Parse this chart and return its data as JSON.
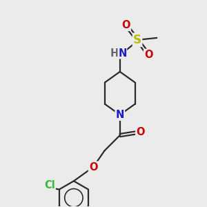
{
  "bg_color": "#ebebeb",
  "bond_color": "#2a2a2a",
  "bond_width": 1.6,
  "atom_colors": {
    "N": "#1a1acc",
    "O": "#cc0000",
    "S": "#bbbb00",
    "Cl": "#33bb33",
    "H": "#666666",
    "C": "#2a2a2a"
  },
  "font_size": 10.5,
  "fig_size": [
    3.0,
    3.0
  ],
  "dpi": 100
}
